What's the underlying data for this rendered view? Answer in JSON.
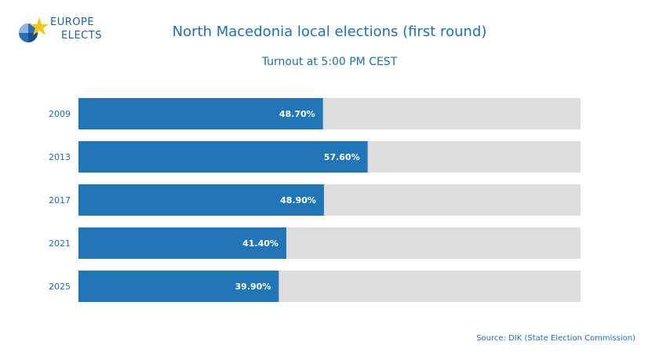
{
  "header": {
    "logo_line1": "EUROPE",
    "logo_line2": "ELECTS"
  },
  "colors": {
    "bar": "#2176b7",
    "track": "#dddddd",
    "text": "#1f6fb2",
    "label": "#ffffff"
  },
  "chart_data": {
    "type": "bar",
    "orientation": "horizontal",
    "title": "North Macedonia local elections (first round)",
    "subtitle": "Turnout at 5:00 PM CEST",
    "categories": [
      "2009",
      "2013",
      "2017",
      "2021",
      "2025"
    ],
    "values": [
      48.7,
      57.6,
      48.9,
      41.4,
      39.9
    ],
    "value_labels": [
      "48.70%",
      "57.60%",
      "48.90%",
      "41.40%",
      "39.90%"
    ],
    "xlim": [
      0,
      100
    ],
    "grid": false
  },
  "footer": {
    "source": "Source: DIK (State Election Commission)"
  }
}
